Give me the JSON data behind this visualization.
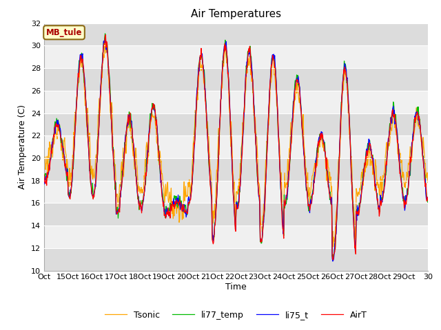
{
  "title": "Air Temperatures",
  "xlabel": "Time",
  "ylabel": "Air Temperature (C)",
  "annotation_text": "MB_tule",
  "annotation_bg": "#FFFFCC",
  "annotation_border": "#8B6914",
  "ylim": [
    10,
    32
  ],
  "yticks": [
    10,
    12,
    14,
    16,
    18,
    20,
    22,
    24,
    26,
    28,
    30,
    32
  ],
  "xtick_labels": [
    "Oct",
    "15Oct",
    "16Oct",
    "17Oct",
    "18Oct",
    "19Oct",
    "20Oct",
    "21Oct",
    "22Oct",
    "23Oct",
    "24Oct",
    "25Oct",
    "26Oct",
    "27Oct",
    "28Oct",
    "29Oct",
    "30"
  ],
  "legend_labels": [
    "AirT",
    "li75_t",
    "li77_temp",
    "Tsonic"
  ],
  "line_colors": [
    "#FF0000",
    "#0000FF",
    "#00BB00",
    "#FFA500"
  ],
  "band_color_dark": "#DCDCDC",
  "band_color_light": "#F0F0F0",
  "figsize": [
    6.4,
    4.8
  ],
  "dpi": 100
}
